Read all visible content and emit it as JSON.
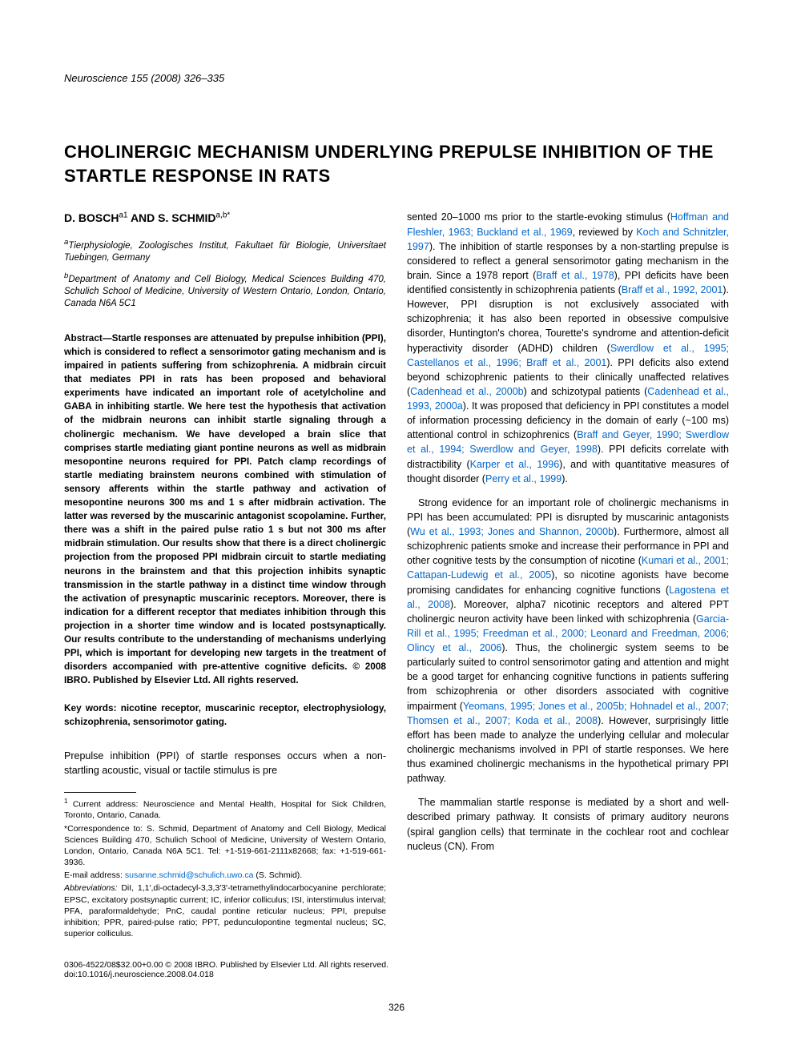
{
  "journal_header": "Neuroscience 155 (2008) 326–335",
  "title": "CHOLINERGIC MECHANISM UNDERLYING PREPULSE INHIBITION OF THE STARTLE RESPONSE IN RATS",
  "authors": "D. BOSCH",
  "author_sup1": "a1",
  "authors_and": " AND S. SCHMID",
  "author_sup2": "a,b*",
  "affiliations": {
    "a_sup": "a",
    "a": "Tierphysiologie, Zoologisches Institut, Fakultaet für Biologie, Universitaet Tuebingen, Germany",
    "b_sup": "b",
    "b": "Department of Anatomy and Cell Biology, Medical Sciences Building 470, Schulich School of Medicine, University of Western Ontario, London, Ontario, Canada N6A 5C1"
  },
  "abstract_label": "Abstract—",
  "abstract_body": "Startle responses are attenuated by prepulse inhibition (PPI), which is considered to reflect a sensorimotor gating mechanism and is impaired in patients suffering from schizophrenia. A midbrain circuit that mediates PPI in rats has been proposed and behavioral experiments have indicated an important role of acetylcholine and GABA in inhibiting startle. We here test the hypothesis that activation of the midbrain neurons can inhibit startle signaling through a cholinergic mechanism. We have developed a brain slice that comprises startle mediating giant pontine neurons as well as midbrain mesopontine neurons required for PPI. Patch clamp recordings of startle mediating brainstem neurons combined with stimulation of sensory afferents within the startle pathway and activation of mesopontine neurons 300 ms and 1 s after midbrain activation. The latter was reversed by the muscarinic antagonist scopolamine. Further, there was a shift in the paired pulse ratio 1 s but not 300 ms after midbrain stimulation. Our results show that there is a direct cholinergic projection from the proposed PPI midbrain circuit to startle mediating neurons in the brainstem and that this projection inhibits synaptic transmission in the startle pathway in a distinct time window through the activation of presynaptic muscarinic receptors. Moreover, there is indication for a different receptor that mediates inhibition through this projection in a shorter time window and is located postsynaptically. Our results contribute to the understanding of mechanisms underlying PPI, which is important for developing new targets in the treatment of disorders accompanied with pre-attentive cognitive deficits. © 2008 IBRO. Published by Elsevier Ltd. All rights reserved.",
  "keywords_label": "Key words: ",
  "keywords_body": "nicotine receptor, muscarinic receptor, electrophysiology, schizophrenia, sensorimotor gating.",
  "intro": {
    "p1a": "Prepulse inhibition (PPI) of startle responses occurs when a non-startling acoustic, visual or tactile stimulus is pre",
    "p1b1": "sented 20–1000 ms prior to the startle-evoking stimulus (",
    "p1b_ref1": "Hoffman and Fleshler, 1963; Buckland et al., 1969",
    "p1b2": ", reviewed by ",
    "p1b_ref2": "Koch and Schnitzler, 1997",
    "p1b3": "). The inhibition of startle responses by a non-startling prepulse is considered to reflect a general sensorimotor gating mechanism in the brain. Since a 1978 report (",
    "p1b_ref3": "Braff et al., 1978",
    "p1b4": "), PPI deficits have been identified consistently in schizophrenia patients (",
    "p1b_ref4": "Braff et al., 1992, 2001",
    "p1b5": "). However, PPI disruption is not exclusively associated with schizophrenia; it has also been reported in obsessive compulsive disorder, Huntington's chorea, Tourette's syndrome and attention-deficit hyperactivity disorder (ADHD) children (",
    "p1b_ref5": "Swerdlow et al., 1995; Castellanos et al., 1996; Braff et al., 2001",
    "p1b6": "). PPI deficits also extend beyond schizophrenic patients to their clinically unaffected relatives (",
    "p1b_ref6": "Cadenhead et al., 2000b",
    "p1b7": ") and schizotypal patients (",
    "p1b_ref7": "Cadenhead et al., 1993, 2000a",
    "p1b8": "). It was proposed that deficiency in PPI constitutes a model of information processing deficiency in the domain of early (~100 ms) attentional control in schizophrenics (",
    "p1b_ref8": "Braff and Geyer, 1990; Swerdlow et al., 1994; Swerdlow and Geyer, 1998",
    "p1b9": "). PPI deficits correlate with distractibility (",
    "p1b_ref9": "Karper et al., 1996",
    "p1b10": "), and with quantitative measures of thought disorder (",
    "p1b_ref10": "Perry et al., 1999",
    "p1b11": ").",
    "p2a": "Strong evidence for an important role of cholinergic mechanisms in PPI has been accumulated: PPI is disrupted by muscarinic antagonists (",
    "p2_ref1": "Wu et al., 1993; Jones and Shannon, 2000b",
    "p2b": "). Furthermore, almost all schizophrenic patients smoke and increase their performance in PPI and other cognitive tests by the consumption of nicotine (",
    "p2_ref2": "Kumari et al., 2001; Cattapan-Ludewig et al., 2005",
    "p2c": "), so nicotine agonists have become promising candidates for enhancing cognitive functions (",
    "p2_ref3": "Lagostena et al., 2008",
    "p2d": "). Moreover, alpha7 nicotinic receptors and altered PPT cholinergic neuron activity have been linked with schizophrenia (",
    "p2_ref4": "Garcia-Rill et al., 1995; Freedman et al., 2000; Leonard and Freedman, 2006; Olincy et al., 2006",
    "p2e": "). Thus, the cholinergic system seems to be particularly suited to control sensorimotor gating and attention and might be a good target for enhancing cognitive functions in patients suffering from schizophrenia or other disorders associated with cognitive impairment (",
    "p2_ref5": "Yeomans, 1995; Jones et al., 2005b; Hohnadel et al., 2007; Thomsen et al., 2007; Koda et al., 2008",
    "p2f": "). However, surprisingly little effort has been made to analyze the underlying cellular and molecular cholinergic mechanisms involved in PPI of startle responses. We here thus examined cholinergic mechanisms in the hypothetical primary PPI pathway.",
    "p3": "The mammalian startle response is mediated by a short and well-described primary pathway. It consists of primary auditory neurons (spiral ganglion cells) that terminate in the cochlear root and cochlear nucleus (CN). From"
  },
  "footnotes": {
    "fn1_sup": "1",
    "fn1": " Current address: Neuroscience and Mental Health, Hospital for Sick Children, Toronto, Ontario, Canada.",
    "fn2": "*Correspondence to: S. Schmid, Department of Anatomy and Cell Biology, Medical Sciences Building 470, Schulich School of Medicine, University of Western Ontario, London, Ontario, Canada N6A 5C1. Tel: +1-519-661-2111x82668; fax: +1-519-661-3936.",
    "fn3a": "E-mail address: ",
    "fn3_email": "susanne.schmid@schulich.uwo.ca",
    "fn3b": " (S. Schmid).",
    "fn4_label": "Abbreviations:",
    "fn4": " DiI, 1,1′,di-octadecyl-3,3,3′3′-tetramethylindocarbocyanine perchlorate; EPSC, excitatory postsynaptic current; IC, inferior colliculus; ISI, interstimulus interval; PFA, paraformaldehyde; PnC, caudal pontine reticular nucleus; PPI, prepulse inhibition; PPR, paired-pulse ratio; PPT, pedunculopontine tegmental nucleus; SC, superior colliculus."
  },
  "copyright": "0306-4522/08$32.00+0.00 © 2008 IBRO. Published by Elsevier Ltd. All rights reserved.",
  "doi": "doi:10.1016/j.neuroscience.2008.04.018",
  "page_number": "326"
}
